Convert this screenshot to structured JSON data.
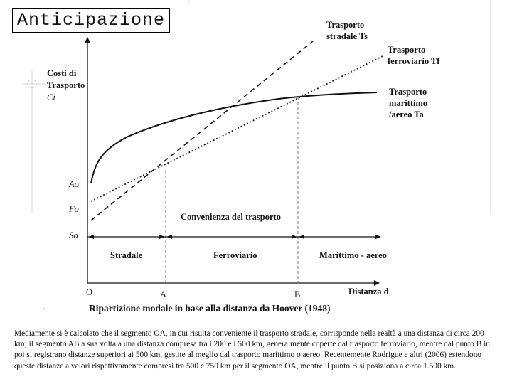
{
  "title": "Anticipazione",
  "diagram": {
    "y_axis_label": [
      "Costi di",
      "Trasporto",
      "Ci"
    ],
    "road_label": [
      "Trasporto",
      "stradale Ts"
    ],
    "rail_label": [
      "Trasporto",
      "ferroviario Tf"
    ],
    "sea_label": [
      "Trasporto",
      "marittimo",
      "/aereo Ta"
    ],
    "intercepts": [
      "Ao",
      "Fo",
      "So"
    ],
    "convenience_label": "Convenienza del trasporto",
    "segments": [
      "Stradale",
      "Ferroviario",
      "Marittimo - aereo"
    ],
    "origin": "O",
    "point_a": "A",
    "point_b": "B",
    "x_axis_label": "Distanza d",
    "figure_caption": "Ripartizione modale in base alla distanza da Hoover (1948)"
  },
  "caption": "Mediamente si è calcolato che il segmento OA, in cui risulta conveniente il trasporto stradale, corrisponde nella realtà a una distanza di circa 200 km; il segmento AB a sua volta a una distanza compresa tra i 200 e i 500 km, generalmente coperte dal trasporto ferroviario, mentre dal punto B in poi si registrano distanze superiori ai 500 km, gestite al meglio dal trasporto marittimo o aereo. Recentemente Rodrigue e altri (2006) estendono queste distanze a valori rispettivamente compresi tra 500 e 750 km per il segmento OA, mentre il punto B si posiziona a circa 1.500 km.",
  "colors": {
    "ink": "#111111",
    "gridline": "#b8c4d0"
  }
}
